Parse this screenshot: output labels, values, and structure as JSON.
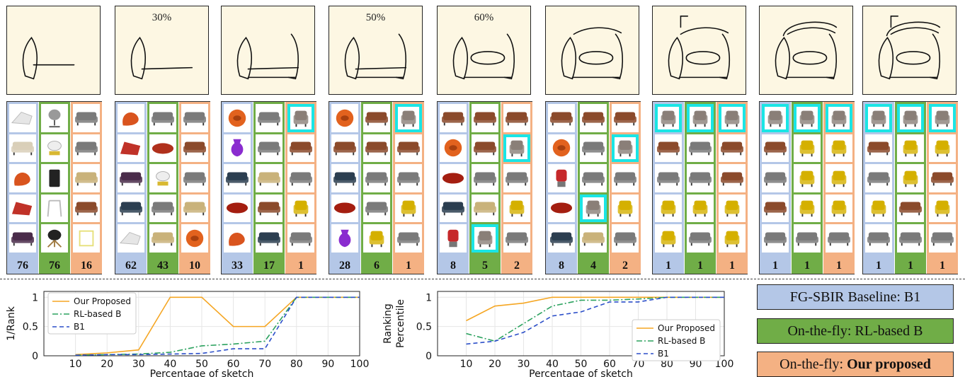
{
  "sketch_steps": [
    {
      "label": ""
    },
    {
      "label": "30%"
    },
    {
      "label": ""
    },
    {
      "label": "50%"
    },
    {
      "label": "60%"
    },
    {
      "label": ""
    },
    {
      "label": ""
    },
    {
      "label": ""
    },
    {
      "label": ""
    }
  ],
  "results": [
    {
      "ranks": [
        "76",
        "76",
        "16"
      ],
      "items": [
        [
          "lounge-white",
          "lounge-cream",
          "recliner-orange",
          "recliner-red",
          "sofa-purple"
        ],
        [
          "chair-swivel",
          "chair-white-gold",
          "chair-black",
          "chair-white",
          "chair-black-legs"
        ],
        [
          "sofa-grey",
          "sofa-grey",
          "sofa-gold",
          "sofa-brown",
          "chair-yellow-wire"
        ]
      ],
      "hits": [
        [],
        [],
        []
      ]
    },
    {
      "ranks": [
        "62",
        "43",
        "10"
      ],
      "items": [
        [
          "recliner-orange",
          "recliner-red",
          "sofa-purple",
          "sofa-navy",
          "lounge-white"
        ],
        [
          "sofa-grey",
          "sofa-red",
          "chair-white-gold",
          "sofa-grey",
          "sofa-gold"
        ],
        [
          "sofa-grey",
          "sofa-brown",
          "sofa-grey",
          "sofa-gold",
          "pod-orange"
        ]
      ],
      "hits": [
        [],
        [],
        []
      ]
    },
    {
      "ranks": [
        "33",
        "17",
        "1"
      ],
      "items": [
        [
          "pod-orange",
          "vase-purple",
          "sofa-navy",
          "pod-red",
          "recliner-orange"
        ],
        [
          "sofa-grey",
          "sofa-grey",
          "sofa-gold",
          "sofa-brown",
          "sofa-navy"
        ],
        [
          "armchair-grey",
          "sofa-brown",
          "sofa-grey",
          "chair-yellow",
          "sofa-grey"
        ]
      ],
      "hits": [
        [],
        [],
        [
          0
        ]
      ]
    },
    {
      "ranks": [
        "28",
        "6",
        "1"
      ],
      "items": [
        [
          "pod-orange",
          "sofa-brown",
          "sofa-navy",
          "pod-red",
          "vase-purple"
        ],
        [
          "sofa-brown",
          "sofa-brown",
          "sofa-grey",
          "sofa-grey",
          "chair-yellow"
        ],
        [
          "armchair-grey",
          "sofa-brown",
          "sofa-grey",
          "chair-yellow",
          "sofa-grey"
        ]
      ],
      "hits": [
        [],
        [],
        [
          0
        ]
      ]
    },
    {
      "ranks": [
        "8",
        "5",
        "2"
      ],
      "items": [
        [
          "sofa-brown",
          "pod-orange",
          "pod-red",
          "sofa-navy",
          "stool-red"
        ],
        [
          "sofa-brown",
          "sofa-brown",
          "sofa-grey",
          "sofa-gold",
          "armchair-grey"
        ],
        [
          "sofa-brown",
          "armchair-grey",
          "sofa-grey",
          "chair-yellow",
          "sofa-grey"
        ]
      ],
      "hits": [
        [],
        [
          4
        ],
        [
          1
        ]
      ]
    },
    {
      "ranks": [
        "8",
        "4",
        "2"
      ],
      "items": [
        [
          "sofa-brown",
          "pod-orange",
          "stool-red",
          "pod-red",
          "sofa-navy"
        ],
        [
          "sofa-brown",
          "sofa-grey",
          "sofa-grey",
          "armchair-grey",
          "sofa-gold"
        ],
        [
          "sofa-brown",
          "armchair-grey",
          "sofa-grey",
          "chair-yellow",
          "sofa-grey"
        ]
      ],
      "hits": [
        [],
        [
          3
        ],
        [
          1
        ]
      ]
    },
    {
      "ranks": [
        "1",
        "1",
        "1"
      ],
      "items": [
        [
          "armchair-grey",
          "sofa-brown",
          "sofa-grey",
          "chair-yellow",
          "chair-yellow"
        ],
        [
          "armchair-grey",
          "sofa-grey",
          "sofa-grey",
          "chair-yellow",
          "sofa-grey"
        ],
        [
          "armchair-grey",
          "sofa-brown",
          "sofa-brown",
          "chair-yellow",
          "chair-yellow"
        ]
      ],
      "hits": [
        [
          0
        ],
        [
          0
        ],
        [
          0
        ]
      ]
    },
    {
      "ranks": [
        "1",
        "1",
        "1"
      ],
      "items": [
        [
          "armchair-grey",
          "sofa-brown",
          "sofa-grey",
          "sofa-brown",
          "sofa-grey"
        ],
        [
          "armchair-grey",
          "chair-yellow",
          "chair-yellow",
          "chair-yellow",
          "sofa-grey"
        ],
        [
          "armchair-grey",
          "chair-yellow",
          "chair-yellow",
          "chair-yellow",
          "sofa-grey"
        ]
      ],
      "hits": [
        [
          0
        ],
        [
          0
        ],
        [
          0
        ]
      ]
    },
    {
      "ranks": [
        "1",
        "1",
        "1"
      ],
      "items": [
        [
          "armchair-grey",
          "sofa-brown",
          "sofa-grey",
          "chair-yellow",
          "sofa-grey"
        ],
        [
          "armchair-grey",
          "chair-yellow",
          "chair-yellow",
          "sofa-brown",
          "sofa-grey"
        ],
        [
          "armchair-grey",
          "chair-yellow",
          "sofa-brown",
          "chair-yellow",
          "sofa-grey"
        ]
      ],
      "hits": [
        [
          0
        ],
        [
          0
        ],
        [
          0
        ]
      ]
    }
  ],
  "chart_data": [
    {
      "type": "line",
      "ylabel": "1/Rank",
      "xlabel": "Percentage of sketch",
      "x": [
        10,
        20,
        30,
        40,
        50,
        60,
        70,
        80,
        90,
        100
      ],
      "xlim": [
        0,
        100
      ],
      "ylim": [
        0,
        1.1
      ],
      "yticks": [
        "0",
        "0.5",
        "1"
      ],
      "legend_position": "top-left",
      "series": [
        {
          "name": "Our Proposed",
          "color": "#f5a623",
          "dash": "solid",
          "values": [
            0.02,
            0.05,
            0.1,
            1.0,
            1.0,
            0.5,
            0.5,
            1.0,
            1.0,
            1.0
          ]
        },
        {
          "name": "RL-based B",
          "color": "#2ca25f",
          "dash": "dashdot",
          "values": [
            0.01,
            0.02,
            0.03,
            0.06,
            0.17,
            0.2,
            0.25,
            1.0,
            1.0,
            1.0
          ]
        },
        {
          "name": "B1",
          "color": "#2c4fc9",
          "dash": "dashed",
          "values": [
            0.01,
            0.02,
            0.02,
            0.03,
            0.04,
            0.12,
            0.12,
            1.0,
            1.0,
            1.0
          ]
        }
      ]
    },
    {
      "type": "line",
      "ylabel": "Ranking Percentile",
      "xlabel": "Percentage of sketch",
      "x": [
        10,
        20,
        30,
        40,
        50,
        60,
        70,
        80,
        90,
        100
      ],
      "xlim": [
        0,
        100
      ],
      "ylim": [
        0,
        1.1
      ],
      "yticks": [
        "0",
        "0.5",
        "1"
      ],
      "legend_position": "center-right",
      "series": [
        {
          "name": "Our Proposed",
          "color": "#f5a623",
          "dash": "solid",
          "values": [
            0.6,
            0.85,
            0.9,
            1.0,
            1.0,
            1.0,
            1.0,
            1.0,
            1.0,
            1.0
          ]
        },
        {
          "name": "RL-based B",
          "color": "#2ca25f",
          "dash": "dashdot",
          "values": [
            0.38,
            0.25,
            0.55,
            0.85,
            0.95,
            0.95,
            0.97,
            1.0,
            1.0,
            1.0
          ]
        },
        {
          "name": "B1",
          "color": "#2c4fc9",
          "dash": "dashed",
          "values": [
            0.2,
            0.25,
            0.4,
            0.68,
            0.75,
            0.92,
            0.92,
            1.0,
            1.0,
            1.0
          ]
        }
      ]
    }
  ],
  "legend_keys": [
    {
      "text": "FG-SBIR Baseline: B1",
      "bold": "",
      "color": "#b4c7e7"
    },
    {
      "text": "On-the-fly: RL-based B",
      "bold": "",
      "color": "#70ad47"
    },
    {
      "text": "On-the-fly: ",
      "bold": "Our proposed",
      "color": "#f4b183"
    }
  ]
}
